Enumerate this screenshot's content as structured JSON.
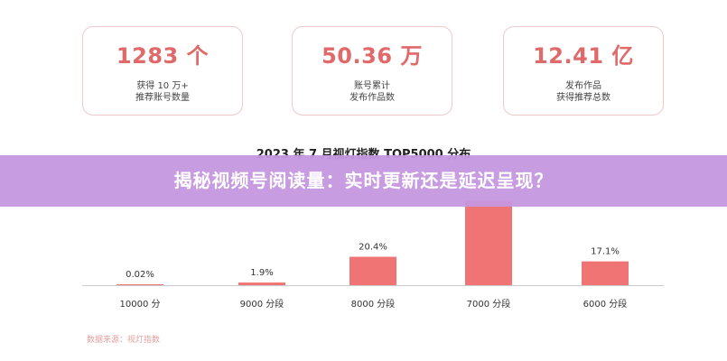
{
  "stats": [
    {
      "value": "1283 个",
      "line1": "获得 10 万+",
      "line2": "推荐账号数量"
    },
    {
      "value": "50.36 万",
      "line1": "账号累计",
      "line2": "发布作品数"
    },
    {
      "value": "12.41 亿",
      "line1": "发布作品",
      "line2": "获得推荐总数"
    }
  ],
  "banner": {
    "text": "揭秘视频号阅读量：实时更新还是延迟呈现？"
  },
  "source": "数据来源：视灯指数",
  "colors": {
    "bar": "#f07474",
    "accent": "#e06a6a",
    "banner": "#c597df"
  },
  "chart_data": {
    "type": "bar",
    "title": "2023 年 7 月视灯指数 TOP5000 分布",
    "categories": [
      "10000 分",
      "9000 分段",
      "8000 分段",
      "7000 分段",
      "6000 分段"
    ],
    "values": [
      0.02,
      1.9,
      20.4,
      60.6,
      17.1
    ],
    "value_labels": [
      "0.02%",
      "1.9%",
      "20.4%",
      "",
      "17.1%"
    ],
    "ylim": [
      0,
      70
    ],
    "grid": false
  }
}
